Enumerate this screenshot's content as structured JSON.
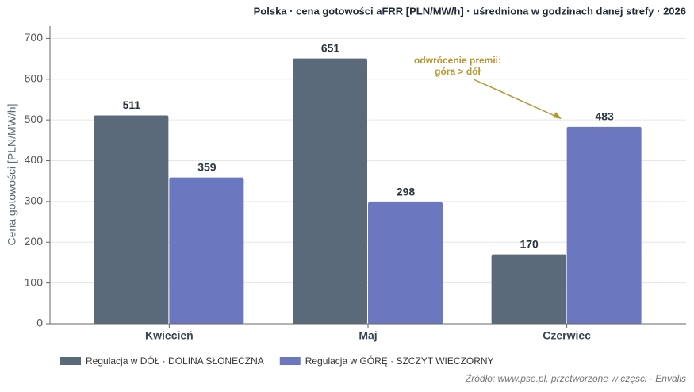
{
  "chart_data": {
    "type": "bar",
    "title": "Polska · cena gotowości aFRR [PLN/MW/h] · uśredniona w godzinach danej strefy · 2026",
    "ylabel": "Cena gotowości [PLN/MW/h]",
    "categories": [
      "Kwiecień",
      "Maj",
      "Czerwiec"
    ],
    "series": [
      {
        "name": "Regulacja w DÓŁ · DOLINA SŁONECZNA",
        "color": "#5a6a7a",
        "values": [
          511,
          651,
          170
        ]
      },
      {
        "name": "Regulacja w GÓRĘ · SZCZYT WIECZORNY",
        "color": "#6b78c0",
        "values": [
          359,
          298,
          483
        ]
      }
    ],
    "ylim": [
      0,
      730
    ],
    "yticks": [
      0,
      100,
      200,
      300,
      400,
      500,
      600,
      700
    ],
    "grid": true,
    "annotation": {
      "lines": [
        "odwrócenie premii:",
        "góra > dół"
      ],
      "color": "#b8962e"
    },
    "source": "Źródło: www.pse.pl, przetworzone w części · Envalis"
  }
}
